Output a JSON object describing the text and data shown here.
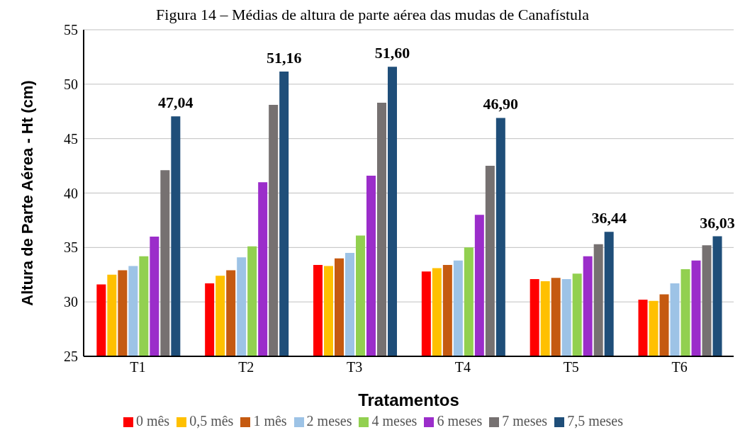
{
  "chart_data": {
    "type": "bar",
    "title": "Figura 14 – Médias de altura de parte aérea das mudas de Canafístula",
    "xlabel": "Tratamentos",
    "ylabel": "Altura de Parte Aérea - Ht (cm)",
    "categories": [
      "T1",
      "T2",
      "T3",
      "T4",
      "T5",
      "T6"
    ],
    "series": [
      {
        "name": "0 mês",
        "color": "#ff0000",
        "values": [
          31.6,
          31.7,
          33.4,
          32.8,
          32.1,
          30.2
        ]
      },
      {
        "name": "0,5 mês",
        "color": "#ffc000",
        "values": [
          32.5,
          32.4,
          33.3,
          33.1,
          31.9,
          30.1
        ]
      },
      {
        "name": "1 mês",
        "color": "#c55a11",
        "values": [
          32.9,
          32.9,
          34.0,
          33.4,
          32.2,
          30.7
        ]
      },
      {
        "name": "2 meses",
        "color": "#9dc3e6",
        "values": [
          33.3,
          34.1,
          34.5,
          33.8,
          32.1,
          31.7
        ]
      },
      {
        "name": "4 meses",
        "color": "#92d050",
        "values": [
          34.2,
          35.1,
          36.1,
          35.0,
          32.6,
          33.0
        ]
      },
      {
        "name": "6 meses",
        "color": "#9b2dca",
        "values": [
          36.0,
          41.0,
          41.6,
          38.0,
          34.2,
          33.8
        ]
      },
      {
        "name": "7 meses",
        "color": "#767171",
        "values": [
          42.1,
          48.1,
          48.3,
          42.5,
          35.3,
          35.2
        ]
      },
      {
        "name": "7,5 meses",
        "color": "#1f4e79",
        "values": [
          47.04,
          51.16,
          51.6,
          46.9,
          36.44,
          36.03
        ],
        "value_labels": [
          "47,04",
          "51,16",
          "51,60",
          "46,90",
          "36,44",
          "36,03"
        ]
      }
    ],
    "ylim": [
      25,
      55
    ],
    "yticks": [
      25,
      30,
      35,
      40,
      45,
      50,
      55
    ],
    "grid": "y",
    "legend": "bottom"
  }
}
